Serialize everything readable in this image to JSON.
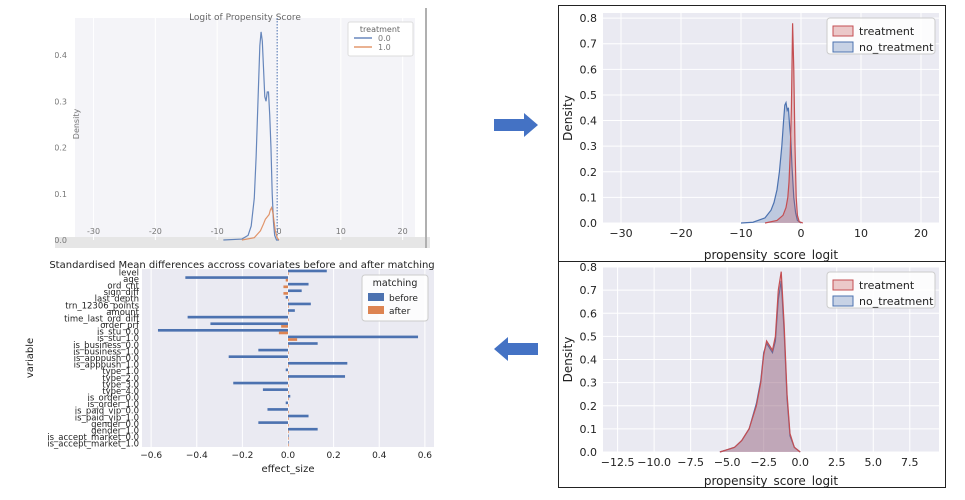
{
  "colors": {
    "panel_bg": "#eaeaf2",
    "grid": "#ffffff",
    "blue": "#4c72b0",
    "orange": "#dd8452",
    "red_fill": "#c44e52",
    "blue_fill": "#4c72b0",
    "arrow": "#4472c4"
  },
  "arrows": {
    "right": "arrow-right-icon",
    "left": "arrow-left-icon"
  },
  "chart_data": [
    {
      "id": "logit",
      "type": "line",
      "title": "Logit of Propensity Score",
      "xlabel": "",
      "ylabel": "Density",
      "xlim": [
        -33,
        22
      ],
      "ylim": [
        0,
        0.48
      ],
      "xticks": [
        "-30",
        "-20",
        "-10",
        "0",
        "10",
        "20"
      ],
      "xtick_values": [
        -30,
        -20,
        -10,
        0,
        10,
        20
      ],
      "yticks": [
        "0.0",
        "0.1",
        "0.2",
        "0.3",
        "0.4"
      ],
      "ytick_values": [
        0,
        0.1,
        0.2,
        0.3,
        0.4
      ],
      "legend": {
        "title": "treatment",
        "position": "top-right",
        "entries": [
          "0.0",
          "1.0"
        ]
      },
      "vline": {
        "x": -0.3,
        "style": "dotted"
      },
      "series": [
        {
          "name": "0.0",
          "x": [
            -9,
            -6,
            -5,
            -4.5,
            -4,
            -3.7,
            -3.4,
            -3.1,
            -2.9,
            -2.7,
            -2.5,
            -2.3,
            -2.1,
            -1.9,
            -1.7,
            -1.5,
            -1.3,
            -1.1,
            -0.9,
            -0.7,
            -0.4,
            0
          ],
          "y": [
            0,
            0.002,
            0.01,
            0.03,
            0.09,
            0.18,
            0.3,
            0.42,
            0.45,
            0.43,
            0.37,
            0.31,
            0.3,
            0.32,
            0.32,
            0.27,
            0.2,
            0.1,
            0.04,
            0.01,
            0,
            0
          ]
        },
        {
          "name": "1.0",
          "x": [
            -6,
            -4,
            -3,
            -2.5,
            -2.2,
            -1.9,
            -1.6,
            -1.4,
            -1.2,
            -1.0,
            -0.8,
            -0.6,
            -0.3,
            0
          ],
          "y": [
            0,
            0.005,
            0.02,
            0.035,
            0.045,
            0.05,
            0.055,
            0.065,
            0.07,
            0.06,
            0.04,
            0.02,
            0.005,
            0
          ]
        }
      ]
    },
    {
      "id": "kde-before",
      "type": "area",
      "title": "",
      "xlabel": "propensity_score_logit",
      "ylabel": "Density",
      "xlim": [
        -33,
        23
      ],
      "ylim": [
        0,
        0.82
      ],
      "xticks": [
        "−30",
        "−20",
        "−10",
        "0",
        "10",
        "20"
      ],
      "xtick_values": [
        -30,
        -20,
        -10,
        0,
        10,
        20
      ],
      "yticks": [
        "0.0",
        "0.1",
        "0.2",
        "0.3",
        "0.4",
        "0.5",
        "0.6",
        "0.7",
        "0.8"
      ],
      "ytick_values": [
        0,
        0.1,
        0.2,
        0.3,
        0.4,
        0.5,
        0.6,
        0.7,
        0.8
      ],
      "legend": {
        "title": "",
        "position": "top-right",
        "entries": [
          "treatment",
          "no_treatment"
        ]
      },
      "series": [
        {
          "name": "treatment",
          "x": [
            -6,
            -4,
            -3,
            -2.5,
            -2.2,
            -2,
            -1.8,
            -1.6,
            -1.4,
            -1.2,
            -1.0,
            -0.8,
            -0.6,
            -0.3,
            0.3
          ],
          "y": [
            0,
            0.01,
            0.03,
            0.06,
            0.1,
            0.16,
            0.27,
            0.45,
            0.78,
            0.6,
            0.3,
            0.1,
            0.03,
            0.005,
            0
          ]
        },
        {
          "name": "no_treatment",
          "x": [
            -10,
            -8,
            -6,
            -5,
            -4.5,
            -4,
            -3.6,
            -3.2,
            -2.9,
            -2.7,
            -2.5,
            -2.3,
            -2.1,
            -1.9,
            -1.7,
            -1.5,
            -1.2,
            -0.9,
            -0.6,
            0
          ],
          "y": [
            0,
            0.003,
            0.02,
            0.05,
            0.08,
            0.13,
            0.2,
            0.3,
            0.4,
            0.46,
            0.47,
            0.44,
            0.45,
            0.38,
            0.33,
            0.22,
            0.1,
            0.04,
            0.01,
            0
          ]
        }
      ]
    },
    {
      "id": "kde-after",
      "type": "area",
      "title": "",
      "xlabel": "propensity_score_logit",
      "ylabel": "Density",
      "xlim": [
        -13.5,
        9.5
      ],
      "ylim": [
        0,
        0.8
      ],
      "xticks": [
        "−12.5",
        "−10.0",
        "−7.5",
        "−5.0",
        "−2.5",
        "0.0",
        "2.5",
        "5.0",
        "7.5"
      ],
      "xtick_values": [
        -12.5,
        -10,
        -7.5,
        -5,
        -2.5,
        0,
        2.5,
        5,
        7.5
      ],
      "yticks": [
        "0.0",
        "0.1",
        "0.2",
        "0.3",
        "0.4",
        "0.5",
        "0.6",
        "0.7",
        "0.8"
      ],
      "ytick_values": [
        0,
        0.1,
        0.2,
        0.3,
        0.4,
        0.5,
        0.6,
        0.7,
        0.8
      ],
      "legend": {
        "title": "",
        "position": "top-right",
        "entries": [
          "treatment",
          "no_treatment"
        ]
      },
      "series": [
        {
          "name": "treatment",
          "x": [
            -5.5,
            -5,
            -4.5,
            -4,
            -3.5,
            -3,
            -2.7,
            -2.5,
            -2.3,
            -2.1,
            -1.9,
            -1.7,
            -1.5,
            -1.3,
            -1.1,
            -0.9,
            -0.7,
            -0.4,
            0
          ],
          "y": [
            0,
            0.01,
            0.02,
            0.05,
            0.1,
            0.2,
            0.3,
            0.42,
            0.48,
            0.46,
            0.44,
            0.5,
            0.7,
            0.78,
            0.55,
            0.25,
            0.08,
            0.02,
            0
          ]
        },
        {
          "name": "no_treatment",
          "x": [
            -5.5,
            -5,
            -4.5,
            -4,
            -3.5,
            -3,
            -2.7,
            -2.5,
            -2.3,
            -2.1,
            -1.9,
            -1.7,
            -1.5,
            -1.3,
            -1.1,
            -0.9,
            -0.7,
            -0.4,
            0
          ],
          "y": [
            0,
            0.01,
            0.02,
            0.05,
            0.1,
            0.21,
            0.31,
            0.43,
            0.47,
            0.45,
            0.43,
            0.48,
            0.66,
            0.74,
            0.52,
            0.23,
            0.07,
            0.02,
            0
          ]
        }
      ]
    },
    {
      "id": "smd",
      "type": "bar",
      "orientation": "horizontal",
      "title": "Standardised Mean differences accross covariates before and after matching",
      "xlabel": "effect_size",
      "ylabel": "variable",
      "xlim": [
        -0.64,
        0.64
      ],
      "xticks": [
        "−0.6",
        "−0.4",
        "−0.2",
        "0.0",
        "0.2",
        "0.4",
        "0.6"
      ],
      "xtick_values": [
        -0.6,
        -0.4,
        -0.2,
        0,
        0.2,
        0.4,
        0.6
      ],
      "legend": {
        "title": "matching",
        "position": "top-right",
        "entries": [
          "before",
          "after"
        ]
      },
      "categories": [
        "level",
        "age",
        "ord_cnt",
        "sign_diff",
        "last_depth",
        "trn_12306_points",
        "amount",
        "time_last_ord_diff",
        "order_prf",
        "is_stu_0.0",
        "is_stu_1.0",
        "is_business_0.0",
        "is_business_1.0",
        "is_apppush_0.0",
        "is_apppush_1.0",
        "type_1.0",
        "type_2.0",
        "type_3.0",
        "type_4.0",
        "is_order_0.0",
        "is_order_1.0",
        "is_paid_vip_0.0",
        "is_paid_vip_1.0",
        "gender_0.0",
        "gender_1.0",
        "is_accept_market_0.0",
        "is_accept_market_1.0"
      ],
      "series": [
        {
          "name": "before",
          "values": [
            0.17,
            -0.45,
            0.09,
            0.06,
            -0.01,
            0.1,
            0.03,
            -0.44,
            -0.34,
            -0.57,
            0.57,
            0.13,
            -0.13,
            -0.26,
            0.26,
            -0.01,
            0.25,
            -0.24,
            -0.11,
            0.01,
            -0.01,
            -0.09,
            0.09,
            -0.13,
            0.13,
            0.0,
            0.0
          ]
        },
        {
          "name": "after",
          "values": [
            0.0,
            -0.01,
            -0.02,
            -0.02,
            0.0,
            0.0,
            0.0,
            0.0,
            -0.03,
            -0.04,
            0.04,
            0.0,
            0.0,
            0.0,
            0.0,
            0.0,
            0.0,
            0.0,
            0.0,
            0.0,
            0.0,
            0.0,
            0.0,
            0.0,
            0.0,
            0.0,
            0.0
          ]
        }
      ]
    }
  ]
}
